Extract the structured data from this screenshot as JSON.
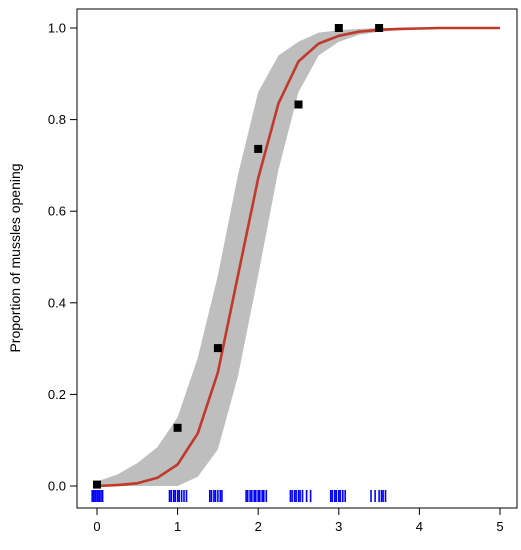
{
  "chart_data": {
    "type": "line",
    "title": "",
    "xlabel": "",
    "ylabel": "Proportion of mussles opening",
    "xlim": [
      0,
      5
    ],
    "ylim": [
      0,
      1
    ],
    "x_ticks": [
      0,
      1,
      2,
      3,
      4,
      5
    ],
    "y_ticks": [
      0.0,
      0.2,
      0.4,
      0.6,
      0.8,
      1.0
    ],
    "x_tick_labels": [
      "0",
      "1",
      "2",
      "3",
      "4",
      "5"
    ],
    "y_tick_labels": [
      "0.0",
      "0.2",
      "0.4",
      "0.6",
      "0.8",
      "1.0"
    ],
    "grid": false,
    "legend": "none",
    "series": [
      {
        "type": "line",
        "color": "#c0392b",
        "x": [
          0,
          0.25,
          0.5,
          0.75,
          1,
          1.25,
          1.5,
          1.75,
          2,
          2.25,
          2.5,
          2.75,
          3,
          3.25,
          3.5,
          3.75,
          4,
          4.25,
          4.5,
          4.75,
          5
        ],
        "y": [
          0.0,
          0.002,
          0.006,
          0.018,
          0.047,
          0.115,
          0.248,
          0.46,
          0.672,
          0.835,
          0.927,
          0.966,
          0.983,
          0.992,
          0.996,
          0.998,
          0.999,
          1.0,
          1.0,
          1.0,
          1.0
        ]
      },
      {
        "type": "band",
        "color": "#bebebe",
        "x": [
          0,
          0.25,
          0.5,
          0.75,
          1,
          1.25,
          1.5,
          1.75,
          2,
          2.25,
          2.5,
          2.75,
          3,
          3.25,
          3.5,
          3.75,
          4,
          4.25,
          4.5,
          4.75,
          5
        ],
        "lower": [
          0.0,
          0.0,
          0.0,
          0.0,
          0.0,
          0.02,
          0.08,
          0.24,
          0.46,
          0.69,
          0.86,
          0.94,
          0.97,
          0.985,
          0.992,
          0.995,
          0.997,
          0.999,
          1.0,
          1.0,
          1.0
        ],
        "upper": [
          0.01,
          0.025,
          0.05,
          0.085,
          0.15,
          0.28,
          0.46,
          0.68,
          0.86,
          0.94,
          0.97,
          0.99,
          0.995,
          0.998,
          1.0,
          1.0,
          1.0,
          1.0,
          1.0,
          1.0,
          1.0
        ]
      },
      {
        "type": "scatter",
        "marker": "square",
        "color": "#000000",
        "x": [
          0,
          1,
          1.5,
          2,
          2.5,
          3,
          3.5
        ],
        "y": [
          0.003,
          0.127,
          0.301,
          0.736,
          0.833,
          1.0,
          1.0
        ]
      },
      {
        "type": "rug",
        "color": "#0000ff",
        "x": [
          -0.06,
          -0.04,
          -0.02,
          0.0,
          0.01,
          0.03,
          0.05,
          0.07,
          0.9,
          0.92,
          0.95,
          0.97,
          1.0,
          1.02,
          1.05,
          1.08,
          1.11,
          1.4,
          1.42,
          1.45,
          1.47,
          1.5,
          1.53,
          1.55,
          1.85,
          1.87,
          1.9,
          1.92,
          1.95,
          1.97,
          2.0,
          2.02,
          2.05,
          2.07,
          2.1,
          2.4,
          2.42,
          2.45,
          2.47,
          2.5,
          2.52,
          2.55,
          2.6,
          2.65,
          2.9,
          2.92,
          2.95,
          2.97,
          3.0,
          3.02,
          3.05,
          3.08,
          3.4,
          3.45,
          3.5,
          3.53,
          3.55,
          3.58
        ]
      }
    ]
  }
}
